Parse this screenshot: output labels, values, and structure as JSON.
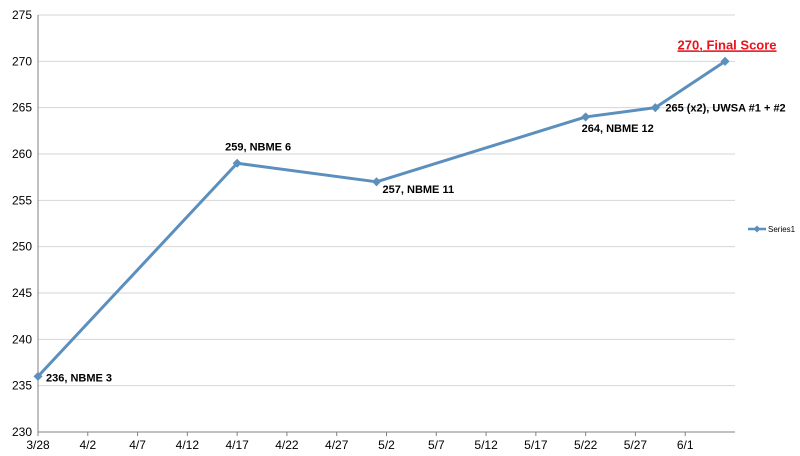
{
  "chart_data": {
    "type": "line",
    "title": "",
    "xlabel": "",
    "ylabel": "",
    "xlim": [
      "2012-03-28",
      "2012-06-06"
    ],
    "ylim": [
      230,
      275
    ],
    "ytick_step": 5,
    "x_ticks": [
      "3/28",
      "4/2",
      "4/7",
      "4/12",
      "4/17",
      "4/22",
      "4/27",
      "5/2",
      "5/7",
      "5/12",
      "5/17",
      "5/22",
      "5/27",
      "6/1"
    ],
    "y_ticks": [
      "230",
      "235",
      "240",
      "245",
      "250",
      "255",
      "260",
      "265",
      "270",
      "275"
    ],
    "grid": "horizontal",
    "legend": "right",
    "series": [
      {
        "name": "Series1",
        "color": "#5b8fbd",
        "points": [
          {
            "x": "2012-03-28",
            "y": 236,
            "label": "236, NBME 3"
          },
          {
            "x": "2012-04-17",
            "y": 259,
            "label": "259, NBME 6"
          },
          {
            "x": "2012-05-01",
            "y": 257,
            "label": "257, NBME 11"
          },
          {
            "x": "2012-05-22",
            "y": 264,
            "label": "264, NBME 12"
          },
          {
            "x": "2012-05-29",
            "y": 265,
            "label": "265 (x2), UWSA #1 + #2"
          },
          {
            "x": "2012-06-05",
            "y": 270,
            "label": "270, Final Score",
            "label_color": "#e8141c"
          }
        ]
      }
    ]
  }
}
